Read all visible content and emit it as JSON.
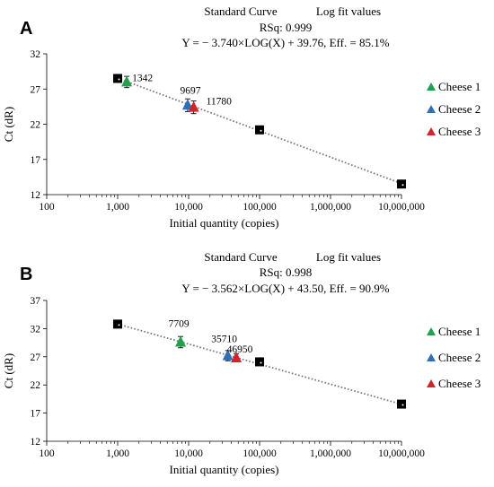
{
  "chart_data": [
    {
      "type": "scatter",
      "panel": "A",
      "header_left": "Standard Curve",
      "header_right": "Log fit values",
      "rsq_text": "RSq: 0.999",
      "equation_text": "Y = − 3.740×LOG(X) + 39.76, Eff. = 85.1%",
      "xlabel": "Initial quantity (copies)",
      "ylabel": "Ct (dR)",
      "xscale": "log",
      "xlim": [
        100,
        10000000
      ],
      "ylim": [
        12,
        32
      ],
      "xticks": [
        {
          "value": 100,
          "label": "100"
        },
        {
          "value": 1000,
          "label": "1,000"
        },
        {
          "value": 10000,
          "label": "10,000"
        },
        {
          "value": 100000,
          "label": "100,000"
        },
        {
          "value": 1000000,
          "label": "1,000,000"
        },
        {
          "value": 10000000,
          "label": "10,000,000"
        }
      ],
      "yticks": [
        {
          "value": 12,
          "label": "12"
        },
        {
          "value": 17,
          "label": "17"
        },
        {
          "value": 22,
          "label": "22"
        },
        {
          "value": 27,
          "label": "27"
        },
        {
          "value": 32,
          "label": "32"
        }
      ],
      "standards": [
        {
          "x": 1000,
          "y": 28.5
        },
        {
          "x": 100000,
          "y": 21.2
        },
        {
          "x": 10000000,
          "y": 13.5
        }
      ],
      "fit": {
        "slope": -3.74,
        "intercept": 39.76
      },
      "samples": [
        {
          "name": "Cheese 1",
          "x": 1342,
          "y": 28.0,
          "err": 0.8,
          "label": "1342",
          "color": "#22a04b"
        },
        {
          "name": "Cheese 2",
          "x": 9697,
          "y": 24.7,
          "err": 0.9,
          "label": "9697",
          "color": "#2e6fb8"
        },
        {
          "name": "Cheese 3",
          "x": 11780,
          "y": 24.4,
          "err": 0.9,
          "label": "11780",
          "color": "#d2232a"
        }
      ],
      "legend_position": "right",
      "grid": false
    },
    {
      "type": "scatter",
      "panel": "B",
      "header_left": "Standard Curve",
      "header_right": "Log fit values",
      "rsq_text": "RSq: 0.998",
      "equation_text": "Y = − 3.562×LOG(X) + 43.50, Eff. = 90.9%",
      "xlabel": "Initial quantity (copies)",
      "ylabel": "Ct (dR)",
      "xscale": "log",
      "xlim": [
        100,
        10000000
      ],
      "ylim": [
        12,
        37
      ],
      "xticks": [
        {
          "value": 100,
          "label": "100"
        },
        {
          "value": 1000,
          "label": "1,000"
        },
        {
          "value": 10000,
          "label": "10,000"
        },
        {
          "value": 100000,
          "label": "100,000"
        },
        {
          "value": 1000000,
          "label": "1,000,000"
        },
        {
          "value": 10000000,
          "label": "10,000,000"
        }
      ],
      "yticks": [
        {
          "value": 12,
          "label": "12"
        },
        {
          "value": 17,
          "label": "17"
        },
        {
          "value": 22,
          "label": "22"
        },
        {
          "value": 27,
          "label": "27"
        },
        {
          "value": 32,
          "label": "32"
        },
        {
          "value": 37,
          "label": "37"
        }
      ],
      "standards": [
        {
          "x": 1000,
          "y": 32.8
        },
        {
          "x": 100000,
          "y": 26.1
        },
        {
          "x": 10000000,
          "y": 18.6
        }
      ],
      "fit": {
        "slope": -3.562,
        "intercept": 43.5
      },
      "samples": [
        {
          "name": "Cheese 1",
          "x": 7709,
          "y": 29.6,
          "err": 1.0,
          "label": "7709",
          "color": "#22a04b"
        },
        {
          "name": "Cheese 2",
          "x": 35710,
          "y": 27.2,
          "err": 0.9,
          "label": "35710",
          "color": "#2e6fb8"
        },
        {
          "name": "Cheese 3",
          "x": 46950,
          "y": 26.8,
          "err": 0.7,
          "label": "46950",
          "color": "#d2232a"
        }
      ],
      "legend_position": "right",
      "grid": false
    }
  ]
}
